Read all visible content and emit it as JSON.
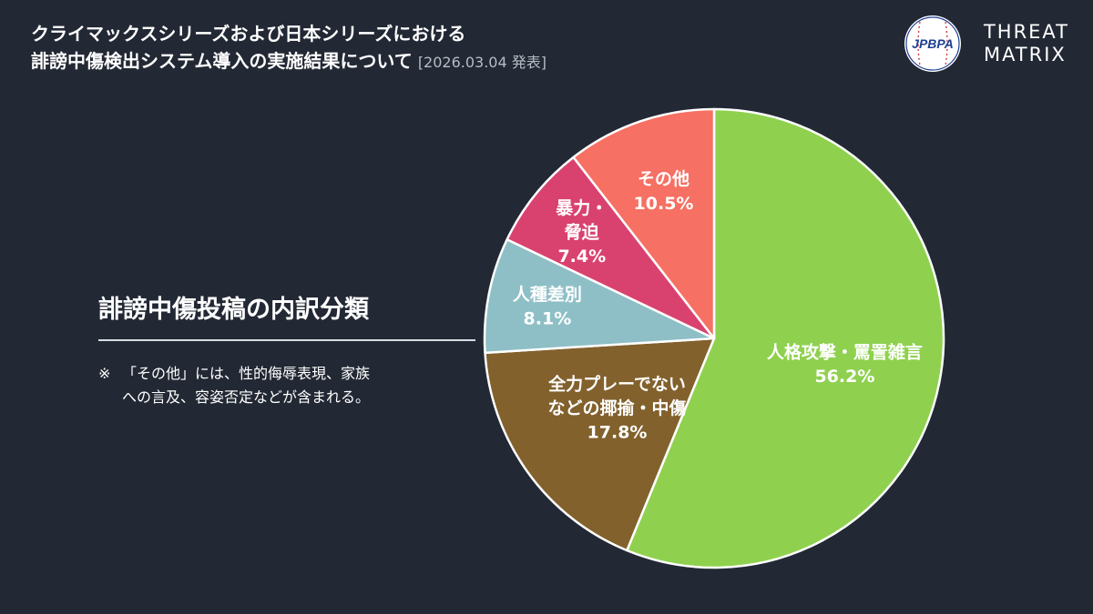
{
  "header": {
    "title_line1": "クライマックスシリーズおよび日本シリーズにおける",
    "title_line2": "誹謗中傷検出システム導入の実施結果について",
    "date": "[2026.03.04 発表]"
  },
  "logos": {
    "jpbpa_text": "JPBPA",
    "threat_matrix_line1": "THREAT",
    "threat_matrix_line2": "MATRIX"
  },
  "subtitle": "誹謗中傷投稿の内訳分類",
  "note": {
    "mark": "※",
    "line1": "「その他」には、性的侮辱表現、家族",
    "line2": "への言及、容姿否定などが含まれる。"
  },
  "chart_data": {
    "type": "pie",
    "title": "誹謗中傷投稿の内訳分類",
    "start": "12 o'clock",
    "direction": "clockwise",
    "slices": [
      {
        "label_lines": [
          "人格攻撃・罵詈雑言"
        ],
        "value": 56.2,
        "value_text": "56.2%",
        "color": "#8fd14f"
      },
      {
        "label_lines": [
          "全力プレーでない",
          "などの揶揄・中傷"
        ],
        "value": 17.8,
        "value_text": "17.8%",
        "color": "#82612d"
      },
      {
        "label_lines": [
          "人種差別"
        ],
        "value": 8.1,
        "value_text": "8.1%",
        "color": "#8ebfc6"
      },
      {
        "label_lines": [
          "暴力・",
          "脅迫"
        ],
        "value": 7.4,
        "value_text": "7.4%",
        "color": "#d9426f"
      },
      {
        "label_lines": [
          "その他"
        ],
        "value": 10.5,
        "value_text": "10.5%",
        "color": "#f67063"
      }
    ]
  }
}
